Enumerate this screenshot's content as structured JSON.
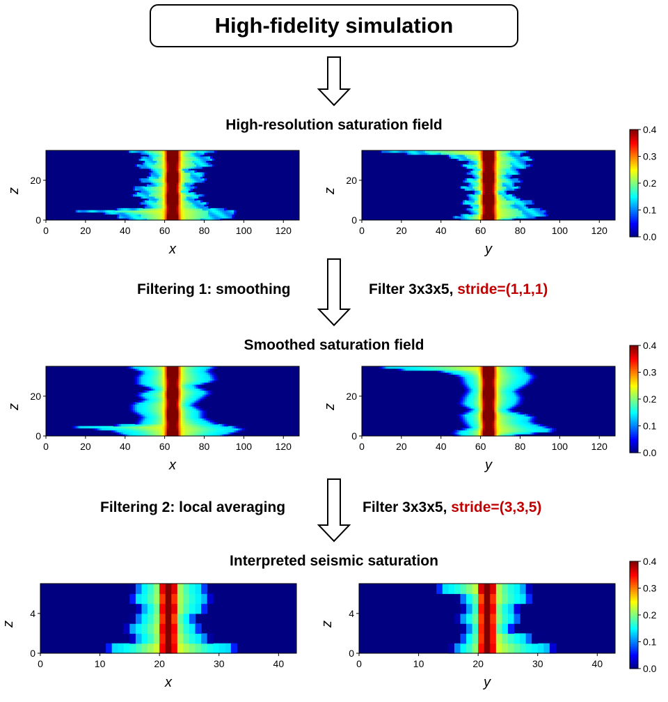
{
  "header": {
    "title": "High-fidelity simulation"
  },
  "stages": [
    {
      "title": "High-resolution saturation field",
      "kind": "raw",
      "nz": 35,
      "nh": 128,
      "xticks": [
        0,
        20,
        40,
        60,
        80,
        100,
        120
      ],
      "zticks": [
        0,
        20
      ],
      "xlabel": "x",
      "ylabel": "y",
      "zlabel": "z"
    },
    {
      "title": "Smoothed saturation field",
      "kind": "smooth",
      "nz": 35,
      "nh": 128,
      "xticks": [
        0,
        20,
        40,
        60,
        80,
        100,
        120
      ],
      "zticks": [
        0,
        20
      ],
      "xlabel": "x",
      "ylabel": "y",
      "zlabel": "z"
    },
    {
      "title": "Interpreted seismic saturation",
      "kind": "coarse",
      "nz": 7,
      "nh": 43,
      "xticks": [
        0,
        10,
        20,
        30,
        40
      ],
      "zticks": [
        0,
        4
      ],
      "xlabel": "x",
      "ylabel": "y",
      "zlabel": "z"
    }
  ],
  "operations": [
    {
      "left": "Filtering 1: smoothing",
      "filter": "Filter 3x3x5,",
      "stride": "stride=(1,1,1)"
    },
    {
      "left": "Filtering 2: local averaging",
      "filter": "Filter 3x3x5,",
      "stride": "stride=(3,3,5)"
    }
  ],
  "colorbar": {
    "colormap": "jet",
    "min": 0.0,
    "max": 0.4,
    "ticks": [
      "0.0",
      "0.1",
      "0.2",
      "0.3",
      "0.4"
    ]
  },
  "chart_data": [
    {
      "type": "heatmap",
      "title": "High-resolution saturation field",
      "panels": [
        "x-z section",
        "y-z section"
      ],
      "xlabel": [
        "x",
        "y"
      ],
      "ylabel": "z",
      "xlim": [
        0,
        128
      ],
      "ylim": [
        0,
        35
      ],
      "value_range": [
        0.0,
        0.4
      ],
      "description_values": {
        "plume_center": 64,
        "max_saturation": 0.4
      }
    },
    {
      "type": "heatmap",
      "title": "Smoothed saturation field",
      "panels": [
        "x-z section",
        "y-z section"
      ],
      "xlabel": [
        "x",
        "y"
      ],
      "ylabel": "z",
      "xlim": [
        0,
        128
      ],
      "ylim": [
        0,
        35
      ],
      "value_range": [
        0.0,
        0.4
      ],
      "description_values": {
        "plume_center": 64,
        "max_saturation": 0.4
      }
    },
    {
      "type": "heatmap",
      "title": "Interpreted seismic saturation",
      "panels": [
        "x-z section",
        "y-z section"
      ],
      "xlabel": [
        "x",
        "y"
      ],
      "ylabel": "z",
      "xlim": [
        0,
        43
      ],
      "ylim": [
        0,
        7
      ],
      "value_range": [
        0.0,
        0.4
      ],
      "description_values": {
        "plume_center": 21.5,
        "max_saturation": 0.4
      }
    }
  ]
}
